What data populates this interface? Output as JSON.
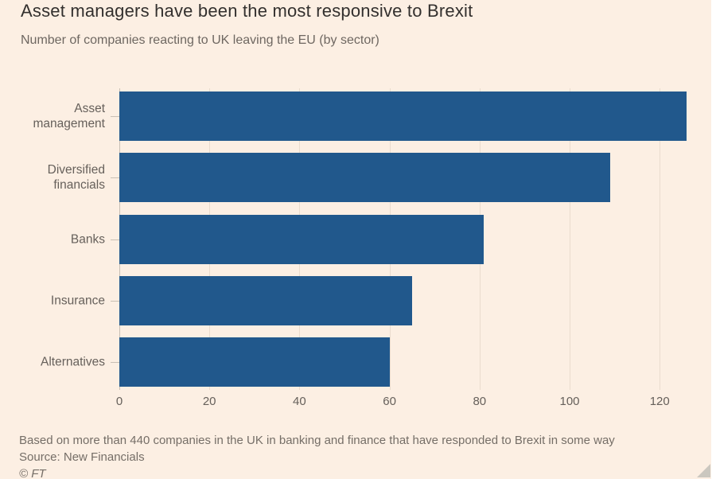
{
  "header": {
    "title": "Asset managers have been the most responsive to Brexit",
    "subtitle": "Number of companies reacting to UK leaving the EU (by sector)"
  },
  "chart_data": {
    "type": "bar",
    "orientation": "horizontal",
    "title": "Asset managers have been the most responsive to Brexit",
    "subtitle": "Number of companies reacting to UK leaving the EU (by sector)",
    "categories": [
      "Asset management",
      "Diversified financials",
      "Banks",
      "Insurance",
      "Alternatives"
    ],
    "category_lines": [
      [
        "Asset",
        "management"
      ],
      [
        "Diversified",
        "financials"
      ],
      [
        "Banks"
      ],
      [
        "Insurance"
      ],
      [
        "Alternatives"
      ]
    ],
    "values": [
      126,
      109,
      81,
      65,
      60
    ],
    "xlabel": "",
    "ylabel": "",
    "xlim": [
      0,
      126.5
    ],
    "xticks": [
      0,
      20,
      40,
      60,
      80,
      100,
      120
    ],
    "grid": "vertical",
    "legend": "none",
    "bar_color": "#21588C"
  },
  "footer": {
    "note": "Based on more than 440 companies in the UK in banking and finance that have responded to Brexit in some way",
    "source": "Source: New Financials",
    "copyright": "© FT"
  },
  "colors": {
    "background": "#FCEFE3",
    "bar": "#21588C",
    "gridline": "#EADCCE",
    "axis": "#C8BFB4",
    "title_text": "#33302E",
    "subtitle_text": "#6E6761",
    "label_text": "#66605B",
    "footer_text": "#756E67",
    "resize_handle": "#CBC7BF"
  }
}
